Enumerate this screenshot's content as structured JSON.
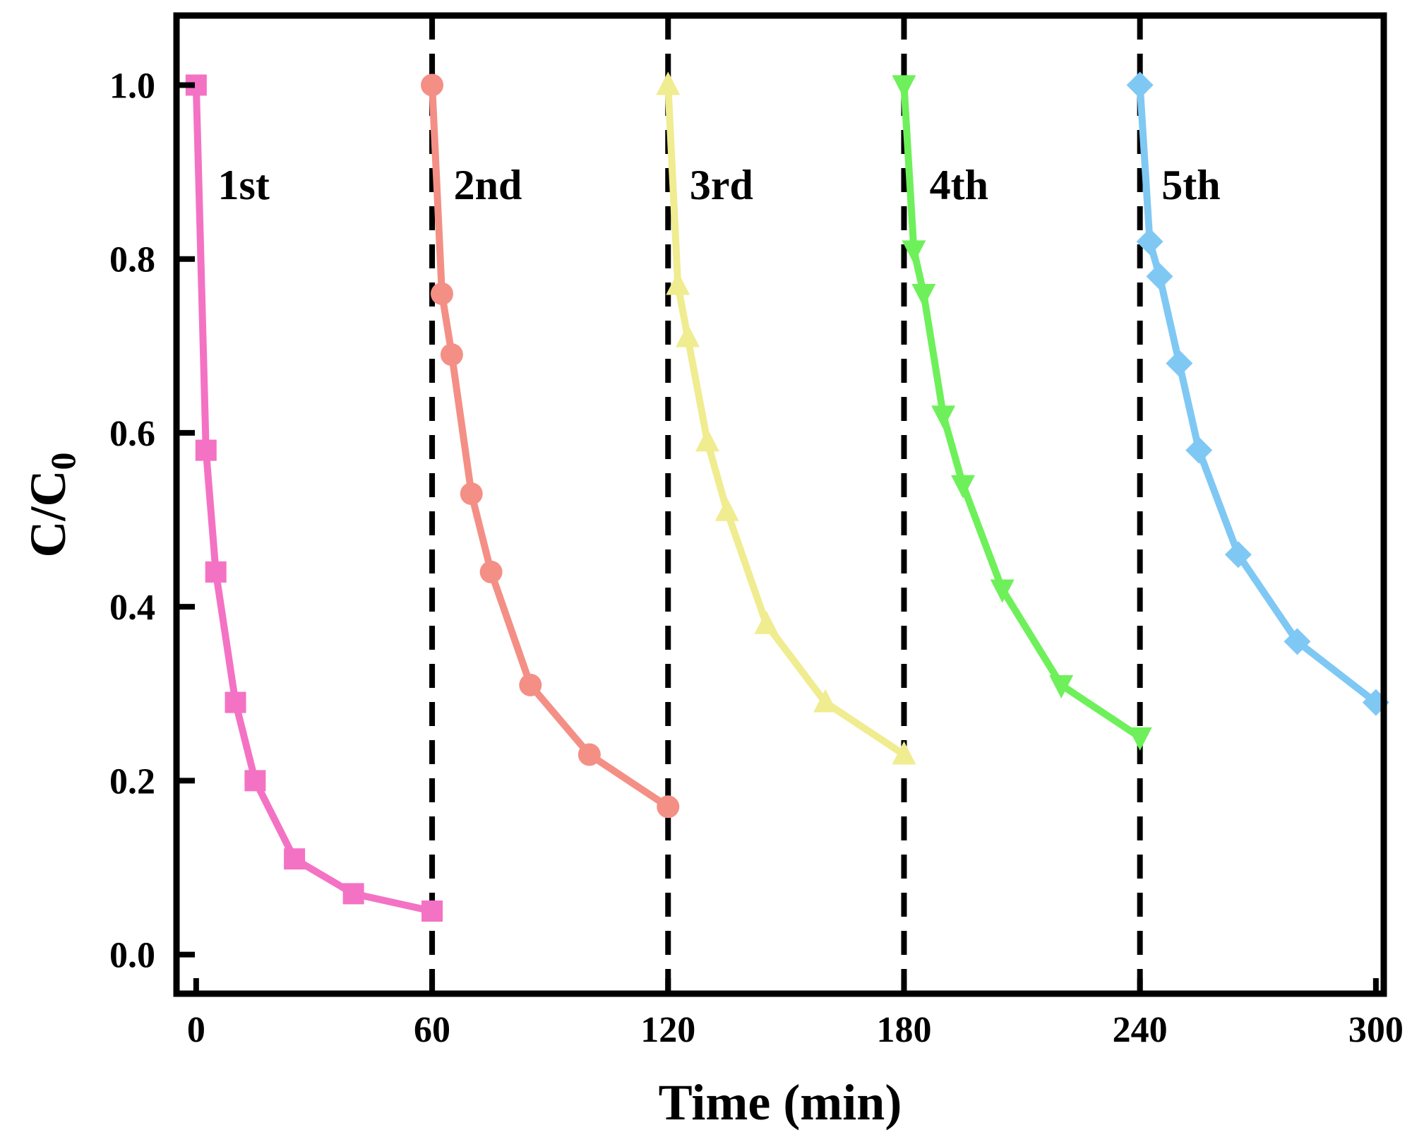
{
  "chart_data": {
    "type": "line",
    "xlabel": "Time (min)",
    "ylabel_main": "C/C",
    "ylabel_sub": "0",
    "xlim": [
      -5,
      302
    ],
    "ylim": [
      -0.045,
      1.08
    ],
    "xticks": [
      0,
      60,
      120,
      180,
      240,
      300
    ],
    "xtick_labels": [
      "0",
      "60",
      "120",
      "180",
      "240",
      "300"
    ],
    "yticks": [
      0.0,
      0.2,
      0.4,
      0.6,
      0.8,
      1.0
    ],
    "ytick_labels": [
      "0.0",
      "0.2",
      "0.4",
      "0.6",
      "0.8",
      "1.0"
    ],
    "cycle_dividers_x": [
      60,
      120,
      180,
      240
    ],
    "grid": false,
    "series": [
      {
        "name": "1st",
        "color": "#f472c4",
        "marker": "square",
        "x": [
          0,
          2.5,
          5,
          10,
          15,
          25,
          40,
          60
        ],
        "y": [
          1.0,
          0.58,
          0.44,
          0.29,
          0.2,
          0.11,
          0.07,
          0.05
        ]
      },
      {
        "name": "2nd",
        "color": "#f48f86",
        "marker": "circle",
        "x": [
          60,
          62.5,
          65,
          70,
          75,
          85,
          100,
          120
        ],
        "y": [
          1.0,
          0.76,
          0.69,
          0.53,
          0.44,
          0.31,
          0.23,
          0.17
        ]
      },
      {
        "name": "3rd",
        "color": "#f0ec90",
        "marker": "triangle-up",
        "x": [
          120,
          122.5,
          125,
          130,
          135,
          145,
          160,
          180
        ],
        "y": [
          1.0,
          0.77,
          0.71,
          0.59,
          0.51,
          0.38,
          0.29,
          0.23
        ]
      },
      {
        "name": "4th",
        "color": "#6ef05a",
        "marker": "triangle-down",
        "x": [
          180,
          182.5,
          185,
          190,
          195,
          205,
          220,
          240
        ],
        "y": [
          1.0,
          0.81,
          0.76,
          0.62,
          0.54,
          0.42,
          0.31,
          0.25
        ]
      },
      {
        "name": "5th",
        "color": "#7fc8f4",
        "marker": "diamond",
        "x": [
          240,
          242.5,
          245,
          250,
          255,
          265,
          280,
          300
        ],
        "y": [
          1.0,
          0.82,
          0.78,
          0.68,
          0.58,
          0.46,
          0.36,
          0.29
        ]
      }
    ],
    "annotations": [
      {
        "text": "1st",
        "x": 5.5,
        "y": 0.885
      },
      {
        "text": "2nd",
        "x": 65.5,
        "y": 0.885
      },
      {
        "text": "3rd",
        "x": 125.5,
        "y": 0.885
      },
      {
        "text": "4th",
        "x": 186.5,
        "y": 0.885
      },
      {
        "text": "5th",
        "x": 245.5,
        "y": 0.885
      }
    ]
  }
}
